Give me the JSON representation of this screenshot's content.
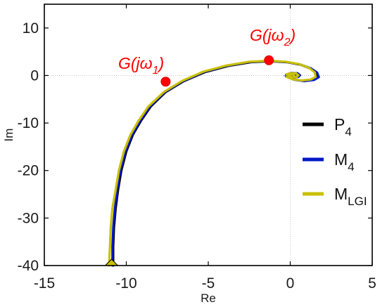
{
  "chart_data": {
    "type": "line",
    "title": "",
    "xlabel": "Re",
    "ylabel": "Im",
    "xlim": [
      -15,
      5
    ],
    "ylim": [
      -40,
      15
    ],
    "xticks": [
      -15,
      -10,
      -5,
      0,
      5
    ],
    "yticks": [
      -40,
      -30,
      -20,
      -10,
      0,
      10
    ],
    "xtick_labels": [
      "-15",
      "-10",
      "-5",
      "0",
      "5"
    ],
    "ytick_labels": [
      "-40",
      "-30",
      "-20",
      "-10",
      "0",
      "10"
    ],
    "grid": false,
    "legend_position": "right",
    "series": [
      {
        "name": "P",
        "name_sub": "4",
        "color": "#000000",
        "x": [
          -10.8,
          -10.8,
          -10.75,
          -10.65,
          -10.5,
          -10.3,
          -10.0,
          -9.6,
          -9.1,
          -8.5,
          -7.6,
          -6.5,
          -5.2,
          -3.8,
          -2.4,
          -1.2,
          -0.2,
          0.6,
          1.2,
          1.55,
          1.6,
          1.3,
          0.75,
          0.2,
          -0.15,
          -0.2,
          0.05,
          0.4,
          0.55,
          0.45,
          0.15,
          -0.05,
          0.0,
          0.2,
          0.3
        ],
        "y": [
          -40,
          -36,
          -32,
          -28,
          -24,
          -20,
          -16,
          -12.5,
          -9.5,
          -6.5,
          -3.5,
          -1.2,
          0.7,
          2.0,
          2.8,
          3.0,
          2.8,
          2.3,
          1.5,
          0.6,
          -0.3,
          -0.9,
          -1.1,
          -0.85,
          -0.35,
          0.2,
          0.5,
          0.45,
          0.05,
          -0.3,
          -0.35,
          -0.05,
          0.2,
          0.2,
          0.0
        ]
      },
      {
        "name": "M",
        "name_sub": "4",
        "color": "#0018c8",
        "x": [
          -10.85,
          -10.85,
          -10.8,
          -10.7,
          -10.55,
          -10.35,
          -10.05,
          -9.65,
          -9.15,
          -8.55,
          -7.65,
          -6.55,
          -5.25,
          -3.85,
          -2.45,
          -1.25,
          -0.25,
          0.6,
          1.25,
          1.65,
          1.75,
          1.45,
          0.85,
          0.25,
          -0.15,
          -0.25,
          0.05,
          0.45,
          0.6,
          0.5,
          0.2,
          -0.05,
          0.0,
          0.2,
          0.3
        ],
        "y": [
          -40,
          -36,
          -32,
          -28,
          -24,
          -20,
          -16,
          -12.5,
          -9.5,
          -6.5,
          -3.5,
          -1.2,
          0.75,
          2.05,
          2.85,
          3.05,
          2.85,
          2.35,
          1.55,
          0.6,
          -0.35,
          -0.95,
          -1.2,
          -0.9,
          -0.4,
          0.2,
          0.55,
          0.5,
          0.05,
          -0.3,
          -0.4,
          -0.05,
          0.2,
          0.2,
          0.0
        ]
      },
      {
        "name": "M",
        "name_sub": "LGI",
        "color": "#c8c000",
        "x": [
          -11.05,
          -11.0,
          -10.95,
          -10.85,
          -10.65,
          -10.45,
          -10.15,
          -9.75,
          -9.25,
          -8.65,
          -7.7,
          -6.6,
          -5.3,
          -3.9,
          -2.5,
          -1.3,
          -0.3,
          0.55,
          1.15,
          1.5,
          1.55,
          1.25,
          0.7,
          0.15,
          -0.2,
          -0.25,
          0.0,
          0.35,
          0.5,
          0.4,
          0.1,
          -0.1,
          -0.05,
          0.15,
          0.25
        ],
        "y": [
          -40,
          -36,
          -32,
          -28,
          -24,
          -20,
          -16,
          -12.5,
          -9.5,
          -6.5,
          -3.45,
          -1.15,
          0.8,
          2.1,
          2.9,
          3.1,
          2.9,
          2.4,
          1.6,
          0.65,
          -0.3,
          -0.85,
          -1.05,
          -0.8,
          -0.3,
          0.2,
          0.5,
          0.45,
          0.05,
          -0.3,
          -0.35,
          -0.05,
          0.2,
          0.2,
          0.0
        ]
      }
    ],
    "points": [
      {
        "label": "G(jω",
        "label_sub": "1",
        "label_close": ")",
        "x": -7.6,
        "y": -1.3
      },
      {
        "label": "G(jω",
        "label_sub": "2",
        "label_close": ")",
        "x": -1.3,
        "y": 3.2
      }
    ],
    "end_marker": {
      "x": -10.9,
      "y": -40
    },
    "origin_marker": {
      "x": -0.3,
      "y": 0.0
    }
  }
}
